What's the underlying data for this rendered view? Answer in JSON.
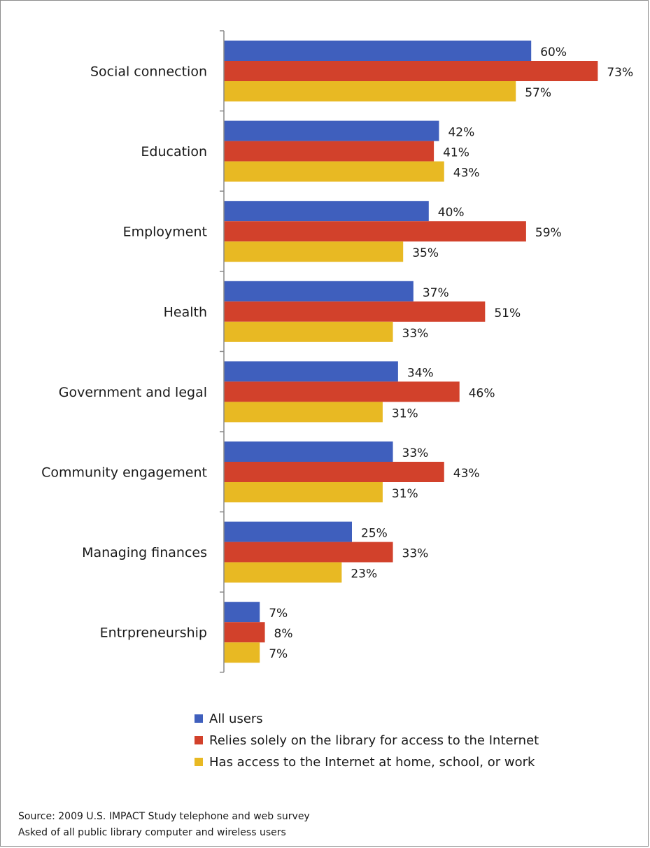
{
  "chart_data": {
    "type": "bar",
    "orientation": "horizontal",
    "categories": [
      "Social connection",
      "Education",
      "Employment",
      "Health",
      "Government and legal",
      "Community engagement",
      "Managing finances",
      "Entrpreneurship"
    ],
    "series": [
      {
        "name": "All users",
        "values": [
          60,
          42,
          40,
          37,
          34,
          33,
          25,
          7
        ],
        "labels": [
          "60%",
          "42%",
          "40%",
          "37%",
          "34%",
          "33%",
          "25%",
          "7%"
        ],
        "color": "#3f5fbd"
      },
      {
        "name": "Relies solely on the library for access to the Internet",
        "values": [
          73,
          41,
          59,
          51,
          46,
          43,
          33,
          8
        ],
        "labels": [
          "73%",
          "41%",
          "59%",
          "51%",
          "46%",
          "43%",
          "33%",
          "8%"
        ],
        "color": "#d2412b"
      },
      {
        "name": "Has access to the Internet at home, school, or work",
        "values": [
          57,
          43,
          35,
          33,
          31,
          31,
          23,
          7
        ],
        "labels": [
          "57%",
          "43%",
          "35%",
          "33%",
          "31%",
          "31%",
          "23%",
          "7%"
        ],
        "color": "#e8b923"
      }
    ],
    "xlim": [
      0,
      80
    ],
    "axis_line": "left",
    "gridlines": false,
    "legend_position": "bottom"
  },
  "source": {
    "line1": "Source: 2009 U.S. IMPACT Study telephone and web survey",
    "line2": "Asked of  all public library computer and wireless users"
  }
}
